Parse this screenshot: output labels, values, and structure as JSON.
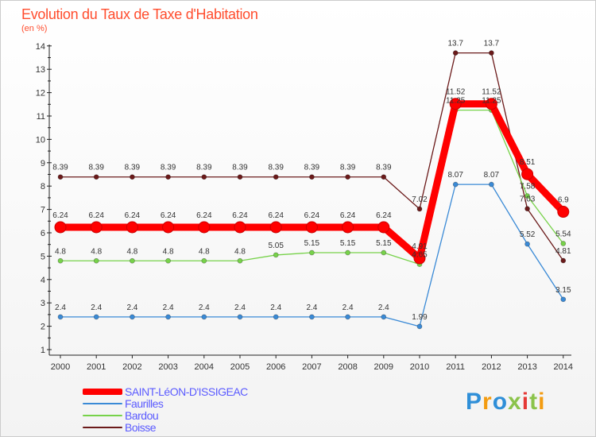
{
  "title": "Evolution du Taux de Taxe d'Habitation",
  "unit_label": "(en %)",
  "brand": "Proxiti",
  "chart_data": {
    "type": "line",
    "title": "Evolution du Taux de Taxe d'Habitation",
    "ylabel": "(en %)",
    "xlabel": "",
    "categories": [
      "2000",
      "2001",
      "2002",
      "2003",
      "2004",
      "2005",
      "2006",
      "2007",
      "2008",
      "2009",
      "2010",
      "2011",
      "2012",
      "2013",
      "2014"
    ],
    "y_ticks": [
      "1",
      "2",
      "3",
      "4",
      "5",
      "6",
      "7",
      "8",
      "9",
      "10",
      "11",
      "12",
      "13",
      "14"
    ],
    "ylim": [
      0.5,
      14.2
    ],
    "grid": false,
    "legend_position": "bottom-left",
    "series": [
      {
        "name": "Boisse",
        "color": "#6b1a1a",
        "labels_visible": true,
        "values": [
          8.39,
          8.39,
          8.39,
          8.39,
          8.39,
          8.39,
          8.39,
          8.39,
          8.39,
          8.39,
          7.02,
          13.7,
          13.7,
          7.03,
          4.81
        ],
        "labels": [
          "8.39",
          "8.39",
          "8.39",
          "8.39",
          "8.39",
          "8.39",
          "8.39",
          "8.39",
          "8.39",
          "8.39",
          "7.02",
          "13.7",
          "13.7",
          "7.03",
          "4.81"
        ]
      },
      {
        "name": "Faurilles",
        "color": "#3a8ad6",
        "labels_visible": true,
        "values": [
          2.4,
          2.4,
          2.4,
          2.4,
          2.4,
          2.4,
          2.4,
          2.4,
          2.4,
          2.4,
          1.99,
          8.07,
          8.07,
          5.52,
          3.15
        ],
        "labels": [
          "2.4",
          "2.4",
          "2.4",
          "2.4",
          "2.4",
          "2.4",
          "2.4",
          "2.4",
          "2.4",
          "2.4",
          "1.99",
          "8.07",
          "8.07",
          "5.52",
          "3.15"
        ]
      },
      {
        "name": "Bardou",
        "color": "#77d24a",
        "labels_visible": true,
        "values": [
          4.8,
          4.8,
          4.8,
          4.8,
          4.8,
          4.8,
          5.05,
          5.15,
          5.15,
          5.15,
          4.65,
          11.25,
          11.25,
          7.58,
          5.54
        ],
        "labels": [
          "4.8",
          "4.8",
          "4.8",
          "4.8",
          "4.8",
          "4.8",
          "5.05",
          "5.15",
          "5.15",
          "5.15",
          "4.65",
          "11.25",
          "11.25",
          "7.58",
          "5.54"
        ]
      },
      {
        "name": "SAINT-LéON-D'ISSIGEAC",
        "color": "#ff0000",
        "labels_visible": true,
        "values": [
          6.24,
          6.24,
          6.24,
          6.24,
          6.24,
          6.24,
          6.24,
          6.24,
          6.24,
          6.24,
          4.91,
          11.52,
          11.52,
          8.51,
          6.9
        ],
        "labels": [
          "6.24",
          "6.24",
          "6.24",
          "6.24",
          "6.24",
          "6.24",
          "6.24",
          "6.24",
          "6.24",
          "6.24",
          "4.91",
          "11.52",
          "11.52",
          "8.51",
          "6.9"
        ]
      }
    ]
  },
  "legend": [
    {
      "label": "SAINT-LéON-D'ISSIGEAC",
      "color": "#ff0000"
    },
    {
      "label": "Faurilles",
      "color": "#3a8ad6"
    },
    {
      "label": "Bardou",
      "color": "#77d24a"
    },
    {
      "label": "Boisse",
      "color": "#6b1a1a"
    }
  ]
}
